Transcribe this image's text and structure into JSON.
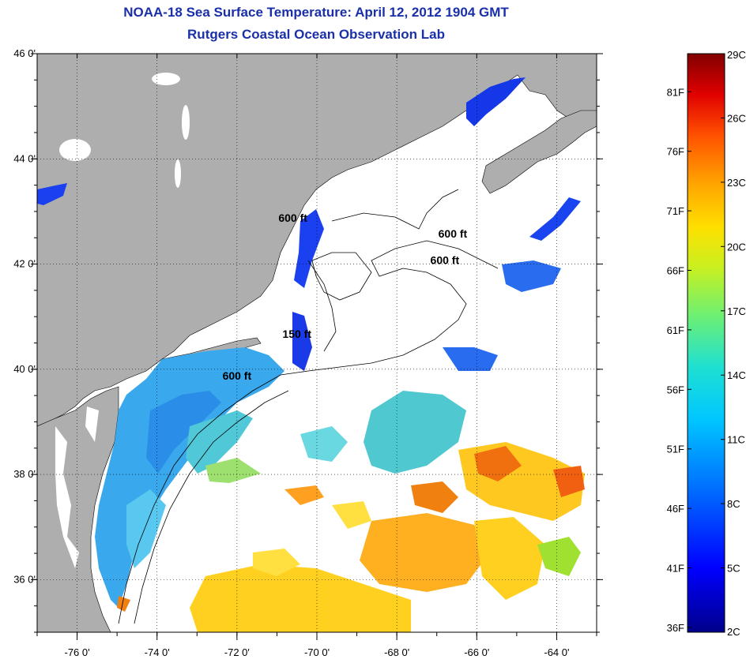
{
  "header": {
    "title": "NOAA-18 Sea Surface Temperature:  April 12, 2012 1904 GMT",
    "subtitle": "Rutgers Coastal Ocean Observation Lab"
  },
  "map": {
    "lon_range": [
      -77,
      -63
    ],
    "lat_range": [
      35,
      46
    ],
    "lon_ticks": [
      {
        "value": -76,
        "label": "-76 0'"
      },
      {
        "value": -74,
        "label": "-74 0'"
      },
      {
        "value": -72,
        "label": "-72 0'"
      },
      {
        "value": -70,
        "label": "-70 0'"
      },
      {
        "value": -68,
        "label": "-68 0'"
      },
      {
        "value": -66,
        "label": "-66 0'"
      },
      {
        "value": -64,
        "label": "-64 0'"
      }
    ],
    "lat_ticks": [
      {
        "value": 46,
        "label": "46 0'"
      },
      {
        "value": 44,
        "label": "44 0'"
      },
      {
        "value": 42,
        "label": "42 0'"
      },
      {
        "value": 40,
        "label": "40 0'"
      },
      {
        "value": 38,
        "label": "38 0'"
      },
      {
        "value": 36,
        "label": "36 0'"
      }
    ],
    "grid": "dotted",
    "contour_labels": [
      {
        "text": "600 ft",
        "lon": -70.6,
        "lat": 42.8
      },
      {
        "text": "600 ft",
        "lon": -66.6,
        "lat": 42.5
      },
      {
        "text": "600 ft",
        "lon": -66.8,
        "lat": 42.0
      },
      {
        "text": "150 ft",
        "lon": -70.5,
        "lat": 40.6
      },
      {
        "text": "600 ft",
        "lon": -72.0,
        "lat": 39.8
      }
    ],
    "colors": {
      "land": "#aeaeae",
      "water": "#ffffff"
    }
  },
  "colorbar": {
    "range_c": [
      2,
      29
    ],
    "celsius_ticks": [
      {
        "value": 29,
        "label": "29C"
      },
      {
        "value": 26,
        "label": "26C"
      },
      {
        "value": 23,
        "label": "23C"
      },
      {
        "value": 20,
        "label": "20C"
      },
      {
        "value": 17,
        "label": "17C"
      },
      {
        "value": 14,
        "label": "14C"
      },
      {
        "value": 11,
        "label": "11C"
      },
      {
        "value": 8,
        "label": "8C"
      },
      {
        "value": 5,
        "label": "5C"
      },
      {
        "value": 2,
        "label": "2C"
      }
    ],
    "fahrenheit_ticks": [
      {
        "value": 81,
        "label": "81F"
      },
      {
        "value": 76,
        "label": "76F"
      },
      {
        "value": 71,
        "label": "71F"
      },
      {
        "value": 66,
        "label": "66F"
      },
      {
        "value": 61,
        "label": "61F"
      },
      {
        "value": 56,
        "label": "56F"
      },
      {
        "value": 51,
        "label": "51F"
      },
      {
        "value": 46,
        "label": "46F"
      },
      {
        "value": 41,
        "label": "41F"
      },
      {
        "value": 36,
        "label": "36F"
      }
    ]
  }
}
